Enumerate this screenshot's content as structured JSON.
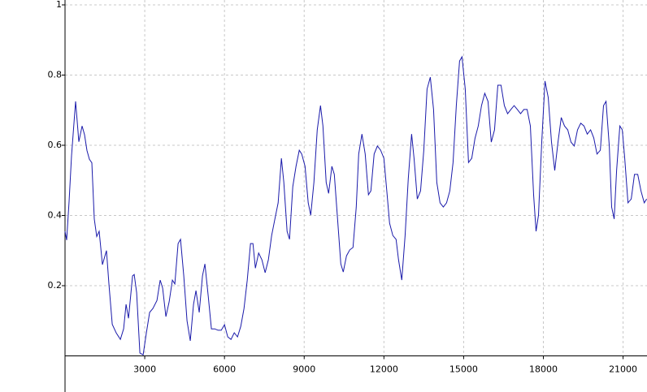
{
  "chart_data": {
    "type": "line",
    "x": [
      0,
      61,
      153,
      245,
      398,
      520,
      643,
      735,
      827,
      918,
      1010,
      1102,
      1194,
      1286,
      1408,
      1561,
      1653,
      1776,
      1929,
      2082,
      2204,
      2296,
      2388,
      2541,
      2602,
      2694,
      2816,
      2939,
      3061,
      3184,
      3306,
      3459,
      3582,
      3673,
      3796,
      3918,
      4041,
      4133,
      4255,
      4347,
      4469,
      4592,
      4714,
      4837,
      4929,
      5051,
      5173,
      5265,
      5388,
      5510,
      5633,
      5755,
      5878,
      6000,
      6122,
      6245,
      6367,
      6490,
      6612,
      6735,
      6857,
      6980,
      7071,
      7163,
      7286,
      7408,
      7531,
      7653,
      7776,
      7898,
      8020,
      8143,
      8235,
      8357,
      8449,
      8571,
      8694,
      8816,
      8908,
      9031,
      9153,
      9245,
      9367,
      9490,
      9612,
      9704,
      9827,
      9918,
      10041,
      10133,
      10255,
      10378,
      10469,
      10592,
      10714,
      10837,
      10959,
      11051,
      11173,
      11296,
      11418,
      11510,
      11633,
      11755,
      11878,
      12000,
      12122,
      12214,
      12337,
      12459,
      12551,
      12673,
      12796,
      12918,
      13041,
      13133,
      13255,
      13378,
      13500,
      13622,
      13745,
      13867,
      13990,
      14112,
      14235,
      14357,
      14480,
      14602,
      14724,
      14847,
      14939,
      15061,
      15184,
      15306,
      15429,
      15551,
      15673,
      15796,
      15918,
      16041,
      16163,
      16286,
      16408,
      16531,
      16653,
      16776,
      16898,
      17020,
      17143,
      17265,
      17388,
      17510,
      17633,
      17724,
      17816,
      17939,
      18061,
      18184,
      18306,
      18429,
      18551,
      18673,
      18796,
      18918,
      19041,
      19163,
      19286,
      19408,
      19531,
      19653,
      19776,
      19898,
      20020,
      20143,
      20265,
      20357,
      20480,
      20571,
      20663,
      20755,
      20878,
      20969,
      21061,
      21184,
      21306,
      21429,
      21551,
      21673,
      21796,
      21888
    ],
    "series": [
      {
        "color": "#1a1aaa",
        "values": [
          0.355,
          0.33,
          0.44,
          0.57,
          0.725,
          0.61,
          0.655,
          0.63,
          0.585,
          0.56,
          0.55,
          0.39,
          0.34,
          0.355,
          0.26,
          0.3,
          0.205,
          0.09,
          0.065,
          0.047,
          0.077,
          0.147,
          0.107,
          0.228,
          0.232,
          0.18,
          0.008,
          0.003,
          0.066,
          0.124,
          0.135,
          0.158,
          0.216,
          0.193,
          0.112,
          0.154,
          0.216,
          0.205,
          0.32,
          0.332,
          0.228,
          0.1,
          0.043,
          0.147,
          0.186,
          0.124,
          0.228,
          0.262,
          0.17,
          0.077,
          0.077,
          0.073,
          0.073,
          0.089,
          0.054,
          0.047,
          0.066,
          0.054,
          0.084,
          0.135,
          0.216,
          0.32,
          0.32,
          0.25,
          0.293,
          0.274,
          0.237,
          0.274,
          0.343,
          0.39,
          0.436,
          0.563,
          0.494,
          0.355,
          0.332,
          0.482,
          0.54,
          0.586,
          0.575,
          0.54,
          0.436,
          0.401,
          0.494,
          0.644,
          0.713,
          0.655,
          0.494,
          0.463,
          0.54,
          0.517,
          0.39,
          0.262,
          0.239,
          0.285,
          0.302,
          0.309,
          0.424,
          0.575,
          0.632,
          0.575,
          0.459,
          0.47,
          0.575,
          0.598,
          0.586,
          0.563,
          0.459,
          0.378,
          0.343,
          0.332,
          0.274,
          0.216,
          0.343,
          0.505,
          0.632,
          0.563,
          0.447,
          0.47,
          0.586,
          0.76,
          0.794,
          0.702,
          0.494,
          0.436,
          0.424,
          0.436,
          0.47,
          0.551,
          0.713,
          0.84,
          0.852,
          0.76,
          0.551,
          0.563,
          0.62,
          0.655,
          0.713,
          0.748,
          0.725,
          0.609,
          0.644,
          0.771,
          0.771,
          0.713,
          0.69,
          0.702,
          0.713,
          0.702,
          0.69,
          0.702,
          0.702,
          0.655,
          0.459,
          0.355,
          0.401,
          0.609,
          0.783,
          0.736,
          0.609,
          0.528,
          0.609,
          0.679,
          0.655,
          0.644,
          0.609,
          0.598,
          0.644,
          0.663,
          0.655,
          0.632,
          0.644,
          0.621,
          0.575,
          0.586,
          0.713,
          0.725,
          0.598,
          0.424,
          0.39,
          0.528,
          0.655,
          0.644,
          0.563,
          0.436,
          0.447,
          0.517,
          0.517,
          0.47,
          0.436,
          0.447
        ]
      }
    ],
    "xlim": [
      0,
      21900
    ],
    "ylim": [
      0,
      1
    ],
    "xticks": [
      3000,
      6000,
      9000,
      12000,
      15000,
      18000,
      21000
    ],
    "yticks": [
      0.2,
      0.4,
      0.6,
      0.8,
      1
    ],
    "grid": true
  }
}
